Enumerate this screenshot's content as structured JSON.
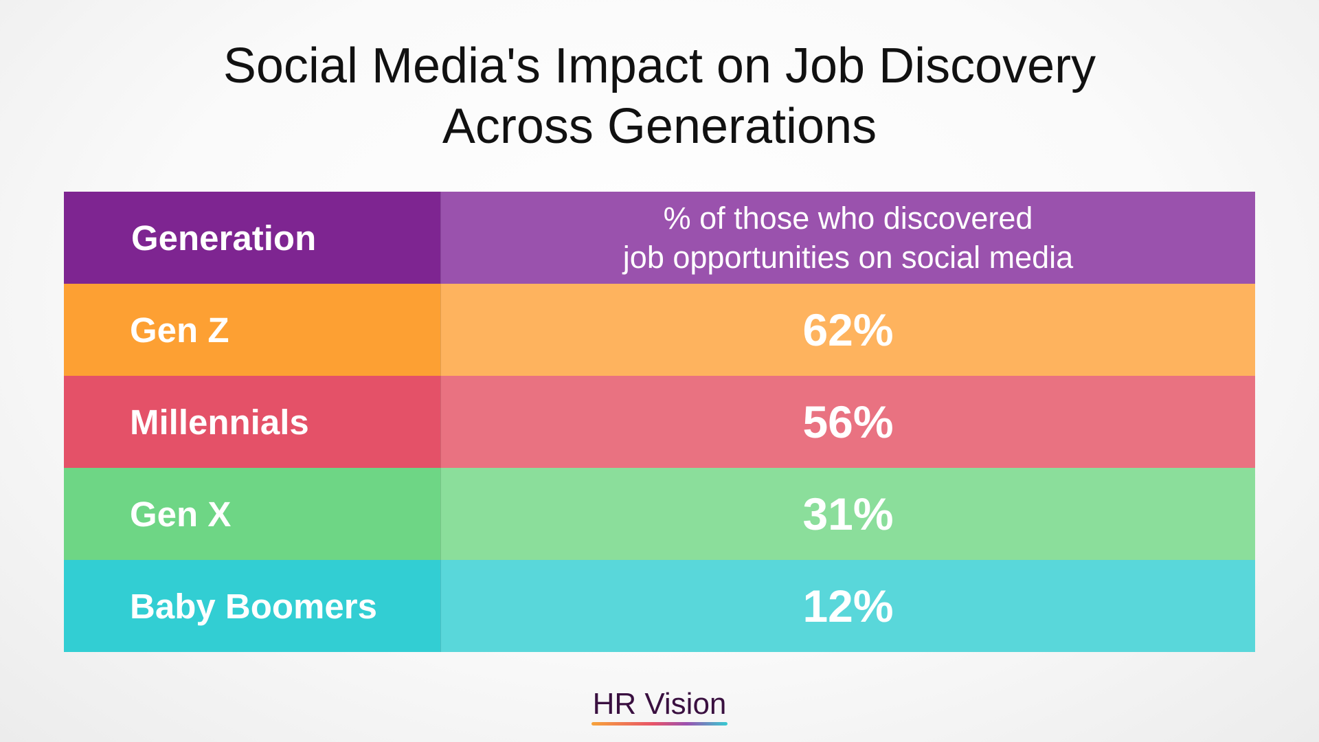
{
  "chart_data": {
    "type": "table",
    "title_lines": [
      "Social Media's Impact on Job Discovery",
      "Across Generations"
    ],
    "columns": {
      "generation": "Generation",
      "value_lines": [
        "% of those who discovered",
        "job opportunities on social media"
      ]
    },
    "header_colors": {
      "generation": "#7e2591",
      "value": "#9a52ad"
    },
    "rows": [
      {
        "label": "Gen Z",
        "value": 62,
        "display": "62%",
        "color_label": "#fda033",
        "color_value": "#feb35e"
      },
      {
        "label": "Millennials",
        "value": 56,
        "display": "56%",
        "color_label": "#e45168",
        "color_value": "#e97281"
      },
      {
        "label": "Gen X",
        "value": 31,
        "display": "31%",
        "color_label": "#6ed685",
        "color_value": "#8bde9b"
      },
      {
        "label": "Baby Boomers",
        "value": 12,
        "display": "12%",
        "color_label": "#32ced3",
        "color_value": "#59d7da"
      }
    ]
  },
  "brand": {
    "name": "HR Vision"
  }
}
